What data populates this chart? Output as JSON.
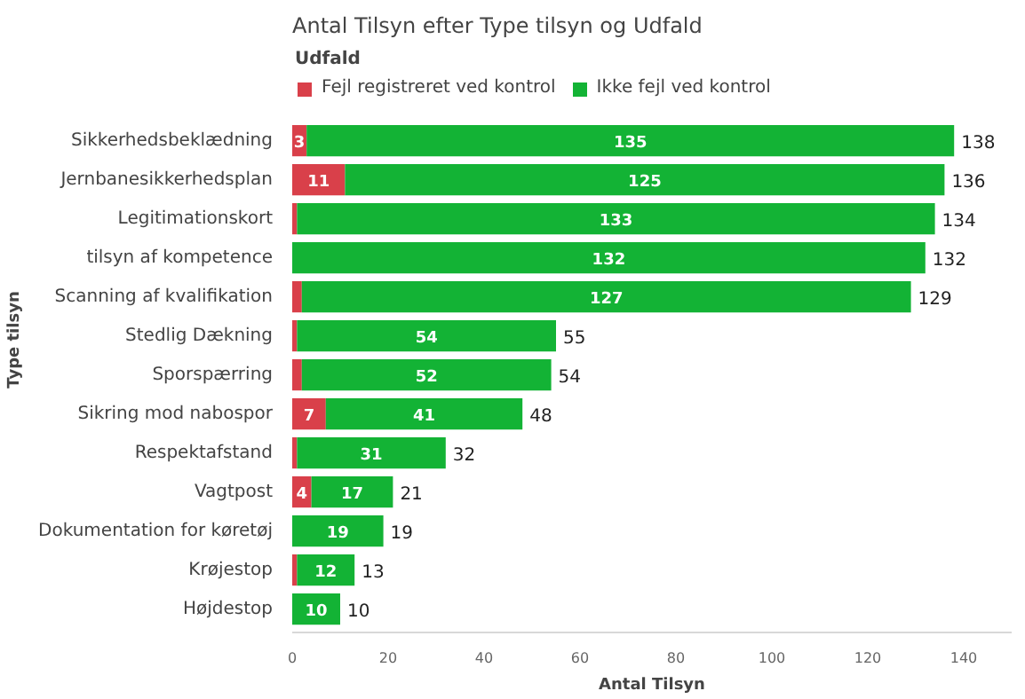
{
  "chart_data": {
    "type": "bar",
    "orientation": "horizontal",
    "stacked": true,
    "title": "Antal Tilsyn efter Type tilsyn og Udfald",
    "legend_title": "Udfald",
    "legend": "top left",
    "xlabel": "Antal Tilsyn",
    "ylabel": "Type tilsyn",
    "categories": [
      "Sikkerhedsbeklædning",
      "Jernbanesikkerhedsplan",
      "Legitimationskort",
      "tilsyn af kompetence",
      "Scanning af kvalifikation",
      "Stedlig Dækning",
      "Sporspærring",
      "Sikring mod nabospor",
      "Respektafstand",
      "Vagtpost",
      "Dokumentation for køretøj",
      "Krøjestop",
      "Højdestop"
    ],
    "series": [
      {
        "name": "Fejl registreret ved kontrol",
        "color": "#d9404a",
        "values": [
          3,
          11,
          1,
          0,
          2,
          1,
          2,
          7,
          1,
          4,
          0,
          1,
          0
        ],
        "value_labels": [
          "3",
          "11",
          null,
          null,
          null,
          null,
          null,
          "7",
          null,
          "4",
          null,
          null,
          null
        ]
      },
      {
        "name": "Ikke fejl ved kontrol",
        "color": "#13b335",
        "values": [
          135,
          125,
          133,
          132,
          127,
          54,
          52,
          41,
          31,
          17,
          19,
          12,
          10
        ],
        "value_labels": [
          "135",
          "125",
          "133",
          "132",
          "127",
          "54",
          "52",
          "41",
          "31",
          "17",
          "19",
          "12",
          "10"
        ]
      }
    ],
    "totals": [
      "138",
      "136",
      "134",
      "132",
      "129",
      "55",
      "54",
      "48",
      "32",
      "21",
      "19",
      "13",
      "10"
    ],
    "xlim": [
      0,
      150
    ],
    "xticks": [
      0,
      20,
      40,
      60,
      80,
      100,
      120,
      140
    ],
    "grid": false
  }
}
